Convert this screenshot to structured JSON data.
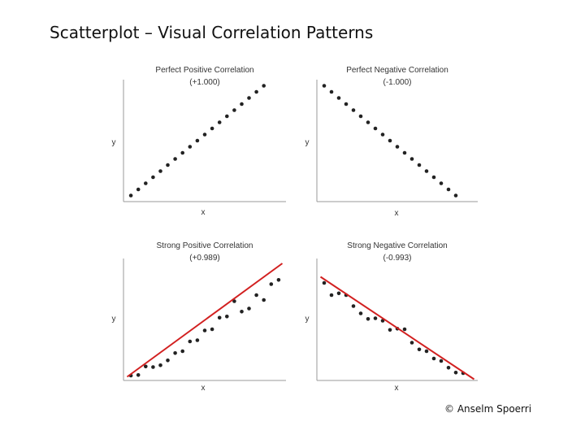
{
  "slide": {
    "title": "Scatterplot – Visual Correlation Patterns",
    "copyright": "© Anselm Spoerri"
  },
  "chart_data": [
    {
      "type": "scatter",
      "title": "Perfect Positive Correlation",
      "subtitle": "(+1.000)",
      "xlabel": "x",
      "ylabel": "y",
      "xlim": [
        0,
        22
      ],
      "ylim": [
        0,
        20
      ],
      "fit_line": false,
      "points": [
        [
          1,
          1
        ],
        [
          2,
          2
        ],
        [
          3,
          3
        ],
        [
          4,
          4
        ],
        [
          5,
          5
        ],
        [
          6,
          6
        ],
        [
          7,
          7
        ],
        [
          8,
          8
        ],
        [
          9,
          9
        ],
        [
          10,
          10
        ],
        [
          11,
          11
        ],
        [
          12,
          12
        ],
        [
          13,
          13
        ],
        [
          14,
          14
        ],
        [
          15,
          15
        ],
        [
          16,
          16
        ],
        [
          17,
          17
        ],
        [
          18,
          18
        ],
        [
          19,
          19
        ]
      ]
    },
    {
      "type": "scatter",
      "title": "Perfect Negative Correlation",
      "subtitle": "(-1.000)",
      "xlabel": "x",
      "ylabel": "y",
      "xlim": [
        0,
        22
      ],
      "ylim": [
        0,
        20
      ],
      "fit_line": false,
      "points": [
        [
          1,
          19
        ],
        [
          2,
          18
        ],
        [
          3,
          17
        ],
        [
          4,
          16
        ],
        [
          5,
          15
        ],
        [
          6,
          14
        ],
        [
          7,
          13
        ],
        [
          8,
          12
        ],
        [
          9,
          11
        ],
        [
          10,
          10
        ],
        [
          11,
          9
        ],
        [
          12,
          8
        ],
        [
          13,
          7
        ],
        [
          14,
          6
        ],
        [
          15,
          5
        ],
        [
          16,
          4
        ],
        [
          17,
          3
        ],
        [
          18,
          2
        ],
        [
          19,
          1
        ]
      ]
    },
    {
      "type": "scatter",
      "title": "Strong Positive Correlation",
      "subtitle": "(+0.989)",
      "xlabel": "x",
      "ylabel": "y",
      "xlim": [
        0,
        22
      ],
      "ylim": [
        0,
        20
      ],
      "fit_line": true,
      "fit_endpoints": [
        [
          0.5,
          0.6
        ],
        [
          21.5,
          19.2
        ]
      ],
      "points": [
        [
          1,
          0.8
        ],
        [
          2,
          0.9
        ],
        [
          3,
          2.3
        ],
        [
          4,
          2.2
        ],
        [
          5,
          2.5
        ],
        [
          6,
          3.3
        ],
        [
          7,
          4.5
        ],
        [
          8,
          4.8
        ],
        [
          9,
          6.4
        ],
        [
          10,
          6.6
        ],
        [
          11,
          8.2
        ],
        [
          12,
          8.4
        ],
        [
          13,
          10.3
        ],
        [
          14,
          10.5
        ],
        [
          15,
          13
        ],
        [
          16,
          11.3
        ],
        [
          17,
          11.8
        ],
        [
          18,
          14
        ],
        [
          19,
          13.2
        ],
        [
          20,
          15.8
        ],
        [
          21,
          16.5
        ]
      ]
    },
    {
      "type": "scatter",
      "title": "Strong Negative Correlation",
      "subtitle": "(-0.993)",
      "xlabel": "x",
      "ylabel": "y",
      "xlim": [
        0,
        22
      ],
      "ylim": [
        0,
        20
      ],
      "fit_line": true,
      "fit_endpoints": [
        [
          0.5,
          17
        ],
        [
          21.5,
          0.2
        ]
      ],
      "points": [
        [
          1,
          16
        ],
        [
          2,
          14
        ],
        [
          3,
          14.3
        ],
        [
          4,
          14
        ],
        [
          5,
          12.2
        ],
        [
          6,
          11
        ],
        [
          7,
          10.1
        ],
        [
          8,
          10.2
        ],
        [
          9,
          9.8
        ],
        [
          10,
          8.3
        ],
        [
          11,
          8.5
        ],
        [
          12,
          8.4
        ],
        [
          13,
          6.2
        ],
        [
          14,
          5.1
        ],
        [
          15,
          4.8
        ],
        [
          16,
          3.6
        ],
        [
          17,
          3.2
        ],
        [
          18,
          2.1
        ],
        [
          19,
          1.3
        ],
        [
          20,
          1.2
        ]
      ]
    }
  ]
}
